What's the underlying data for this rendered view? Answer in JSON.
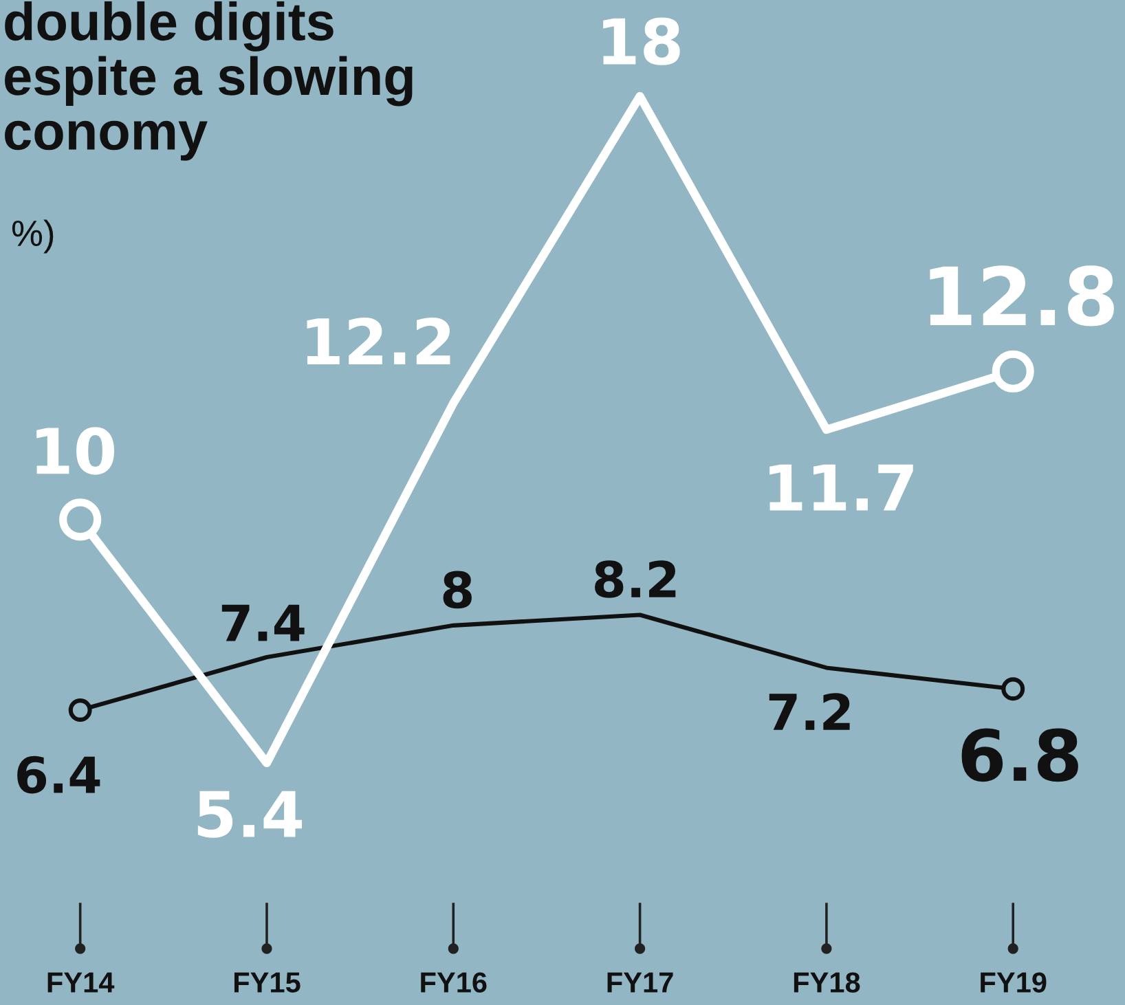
{
  "chart_data": {
    "type": "line",
    "title": "double digits\nespite a slowing\nconomy",
    "subtitle": "%)",
    "categories": [
      "FY14",
      "FY15",
      "FY16",
      "FY17",
      "FY18",
      "FY19"
    ],
    "series": [
      {
        "color": "#ffffff",
        "values": [
          10,
          5.4,
          12.2,
          18,
          11.7,
          12.8
        ]
      },
      {
        "color": "#111111",
        "values": [
          6.4,
          7.4,
          8,
          8.2,
          7.2,
          6.8
        ]
      },
      {
        "type": "scatter",
        "x": [
          "FY14",
          "FY19"
        ],
        "color": "#ffffff",
        "values": [
          10,
          12.8
        ],
        "value_labels": [
          null,
          null
        ],
        "marker": "circle"
      },
      {
        "type": "scatter",
        "x": [
          "FY14",
          "FY19"
        ],
        "color": "#111111",
        "values": [
          6.4,
          6.8
        ],
        "value_labels": [
          null,
          null
        ],
        "marker": "circle"
      }
    ],
    "line_style": "solid",
    "data_labels": true,
    "tick_labels": "x"
  }
}
